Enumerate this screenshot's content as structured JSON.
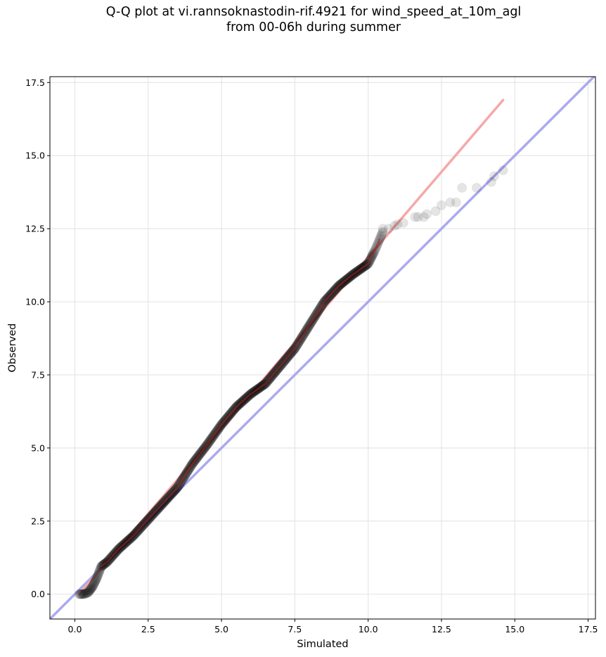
{
  "chart_data": {
    "type": "scatter",
    "title_line1": "Q-Q plot at vi.rannsoknastodin-rif.4921 for wind_speed_at_10m_agl",
    "title_line2": "from 00-06h during summer",
    "xlabel": "Simulated",
    "ylabel": "Observed",
    "xlim": [
      -0.85,
      17.75
    ],
    "ylim": [
      -0.85,
      17.7
    ],
    "xticks": [
      "0.0",
      "2.5",
      "5.0",
      "7.5",
      "10.0",
      "12.5",
      "15.0",
      "17.5"
    ],
    "yticks": [
      "0.0",
      "2.5",
      "5.0",
      "7.5",
      "10.0",
      "12.5",
      "15.0",
      "17.5"
    ],
    "grid": true,
    "colors": {
      "points": "#000000",
      "identity_line": "#aaaaee",
      "fit_line": "#f5a9a9",
      "fit_line_dense": "#aa2222"
    },
    "fit_line": {
      "x": [
        0.15,
        14.6
      ],
      "y": [
        0.0,
        16.9
      ]
    },
    "identity_line": {
      "x": [
        -0.85,
        17.75
      ],
      "y": [
        -0.85,
        17.75
      ]
    },
    "outlier_points": [
      [
        10.5,
        12.5
      ],
      [
        10.7,
        12.5
      ],
      [
        10.9,
        12.6
      ],
      [
        11.0,
        12.65
      ],
      [
        11.2,
        12.7
      ],
      [
        11.6,
        12.9
      ],
      [
        11.7,
        12.9
      ],
      [
        11.9,
        12.9
      ],
      [
        12.0,
        13.0
      ],
      [
        12.3,
        13.1
      ],
      [
        12.5,
        13.3
      ],
      [
        12.8,
        13.4
      ],
      [
        13.0,
        13.4
      ],
      [
        13.2,
        13.9
      ],
      [
        13.7,
        13.9
      ],
      [
        14.2,
        14.1
      ],
      [
        14.3,
        14.3
      ],
      [
        14.6,
        14.5
      ]
    ],
    "quantile_anchors": [
      [
        0.15,
        0.0
      ],
      [
        0.3,
        0.0
      ],
      [
        0.45,
        0.05
      ],
      [
        0.6,
        0.25
      ],
      [
        0.75,
        0.55
      ],
      [
        0.9,
        0.95
      ],
      [
        1.1,
        1.1
      ],
      [
        1.5,
        1.55
      ],
      [
        2.0,
        2.0
      ],
      [
        2.5,
        2.55
      ],
      [
        3.0,
        3.1
      ],
      [
        3.5,
        3.65
      ],
      [
        4.0,
        4.45
      ],
      [
        4.5,
        5.1
      ],
      [
        5.0,
        5.8
      ],
      [
        5.5,
        6.4
      ],
      [
        6.0,
        6.85
      ],
      [
        6.5,
        7.2
      ],
      [
        7.0,
        7.8
      ],
      [
        7.5,
        8.4
      ],
      [
        8.0,
        9.2
      ],
      [
        8.5,
        10.0
      ],
      [
        9.0,
        10.55
      ],
      [
        9.5,
        10.95
      ],
      [
        10.0,
        11.3
      ],
      [
        10.25,
        11.8
      ],
      [
        10.5,
        12.4
      ]
    ],
    "dense_points_count": 420
  }
}
